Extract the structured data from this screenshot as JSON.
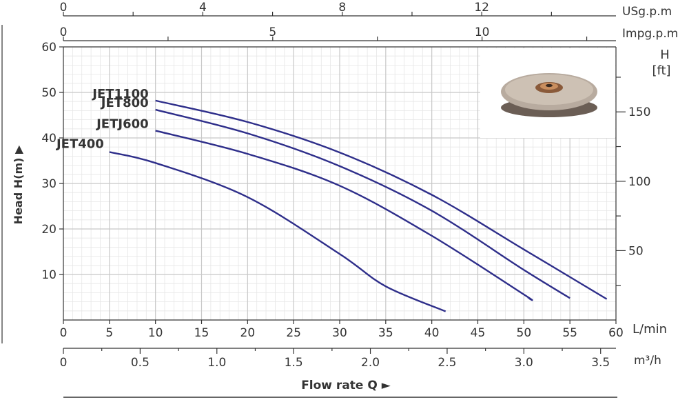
{
  "chart_data": {
    "type": "line",
    "title": "",
    "ylabel": "Head H(m) ▶",
    "ylim": [
      0,
      60
    ],
    "y_ticks": [
      10,
      20,
      30,
      40,
      50,
      60
    ],
    "xlabel": "Flow rate Q ►",
    "xlim_lmin": [
      0,
      60
    ],
    "x_ticks_lmin": [
      0,
      5,
      10,
      15,
      20,
      25,
      30,
      35,
      40,
      45,
      50,
      55,
      60
    ],
    "x_unit_lmin": "L/min",
    "x_ticks_m3h": [
      "0",
      "0.5",
      "1.0",
      "1.5",
      "2.0",
      "2.5",
      "3.0",
      "3.5"
    ],
    "x_unit_m3h": "m³/h",
    "x_ticks_usgpm": [
      "0",
      "4",
      "8",
      "12"
    ],
    "x_unit_usgpm": "USg.p.m",
    "x_ticks_impgpm": [
      "0",
      "5",
      "10"
    ],
    "x_unit_impgpm": "Impg.p.m",
    "y2_unit_line1": "H",
    "y2_unit_line2": "[ft]",
    "y2_ticks_ft": [
      50,
      100,
      150
    ],
    "grid": true,
    "series": [
      {
        "name": "JET1100",
        "x": [
          10,
          20,
          30,
          40,
          50,
          59
        ],
        "y": [
          48.2,
          43.5,
          36.8,
          27.5,
          15.5,
          4.6
        ]
      },
      {
        "name": "JET800",
        "x": [
          10,
          20,
          30,
          40,
          50,
          55
        ],
        "y": [
          46.2,
          41.0,
          33.8,
          24.0,
          11.0,
          4.8
        ]
      },
      {
        "name": "JETJ600",
        "x": [
          10,
          20,
          30,
          40,
          50,
          50.5
        ],
        "y": [
          41.6,
          36.5,
          29.5,
          18.5,
          5.6,
          4.8
        ]
      },
      {
        "name": "JET400",
        "x": [
          5,
          10,
          20,
          30,
          35,
          41.5
        ],
        "y": [
          36.9,
          34.5,
          27.0,
          14.5,
          7.4,
          1.9
        ]
      }
    ],
    "line_color": "#2e2e8a"
  }
}
